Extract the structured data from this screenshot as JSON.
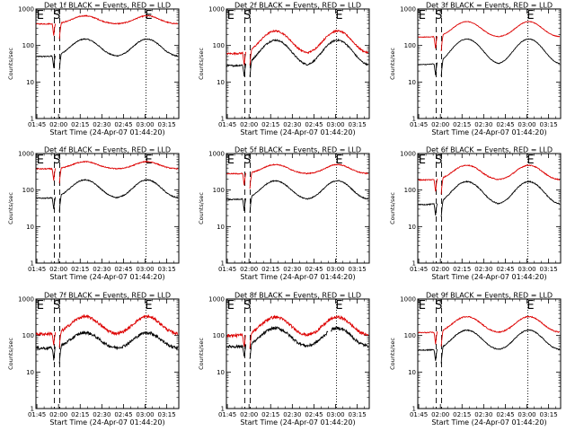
{
  "colors": {
    "events": "#000000",
    "lld": "#dd0000",
    "axes": "#000000",
    "background": "#ffffff"
  },
  "chart_data": {
    "type": "line",
    "scale": "log",
    "ylim": [
      1,
      1000
    ],
    "y_ticks": [
      1,
      10,
      100,
      1000
    ],
    "y_tick_labels": [
      "1",
      "10",
      "100",
      "1000"
    ],
    "ylabel": "Counts/sec",
    "xlabel": "Start Time (24-Apr-07 01:44:20)",
    "x_ticks": [
      "01:45",
      "02:00",
      "02:15",
      "02:30",
      "02:45",
      "03:00",
      "03:15"
    ],
    "x_tick_minutes": [
      0.67,
      15.67,
      30.67,
      45.67,
      60.67,
      75.67,
      90.67
    ],
    "x_range_minutes": [
      0,
      99
    ],
    "series_names": [
      "Events",
      "LLD"
    ],
    "markers": {
      "E_left": {
        "label": "E",
        "minute": 0.5
      },
      "S": {
        "label": "S",
        "minute": 14.5,
        "lines": [
          12.8,
          16.5
        ],
        "style": "dashed"
      },
      "E_right": {
        "label": "E",
        "minute": 76.3,
        "style": "dotted"
      }
    },
    "panels": [
      {
        "title": "Det 1f BLACK = Events, RED = LLD",
        "detector": "1f",
        "events_peak": 150,
        "lld_peak": 650,
        "events_base": 50,
        "lld_base": 390,
        "noise": 0.03,
        "gap": false
      },
      {
        "title": "Det 2f BLACK = Events, RED = LLD",
        "detector": "2f",
        "events_peak": 140,
        "lld_peak": 250,
        "events_base": 28,
        "lld_base": 60,
        "noise": 0.05,
        "gap": false
      },
      {
        "title": "Det 3f BLACK = Events, RED = LLD",
        "detector": "3f",
        "events_peak": 150,
        "lld_peak": 450,
        "events_base": 30,
        "lld_base": 170,
        "noise": 0.02,
        "gap": false
      },
      {
        "title": "Det 4f BLACK = Events, RED = LLD",
        "detector": "4f",
        "events_peak": 190,
        "lld_peak": 600,
        "events_base": 60,
        "lld_base": 380,
        "noise": 0.03,
        "gap": false
      },
      {
        "title": "Det 5f BLACK = Events, RED = LLD",
        "detector": "5f",
        "events_peak": 180,
        "lld_peak": 500,
        "events_base": 55,
        "lld_base": 280,
        "noise": 0.03,
        "gap": false
      },
      {
        "title": "Det 6f BLACK = Events, RED = LLD",
        "detector": "6f",
        "events_peak": 170,
        "lld_peak": 480,
        "events_base": 40,
        "lld_base": 190,
        "noise": 0.03,
        "gap": false
      },
      {
        "title": "Det 7f BLACK = Events, RED = LLD",
        "detector": "7f",
        "events_peak": 120,
        "lld_peak": 330,
        "events_base": 45,
        "lld_base": 110,
        "noise": 0.09,
        "gap": false
      },
      {
        "title": "Det 8f BLACK = Events, RED = LLD",
        "detector": "8f",
        "events_peak": 160,
        "lld_peak": 320,
        "events_base": 50,
        "lld_base": 100,
        "noise": 0.09,
        "gap": true
      },
      {
        "title": "Det 9f BLACK = Events, RED = LLD",
        "detector": "9f",
        "events_peak": 140,
        "lld_peak": 330,
        "events_base": 40,
        "lld_base": 120,
        "noise": 0.03,
        "gap": false
      }
    ]
  }
}
